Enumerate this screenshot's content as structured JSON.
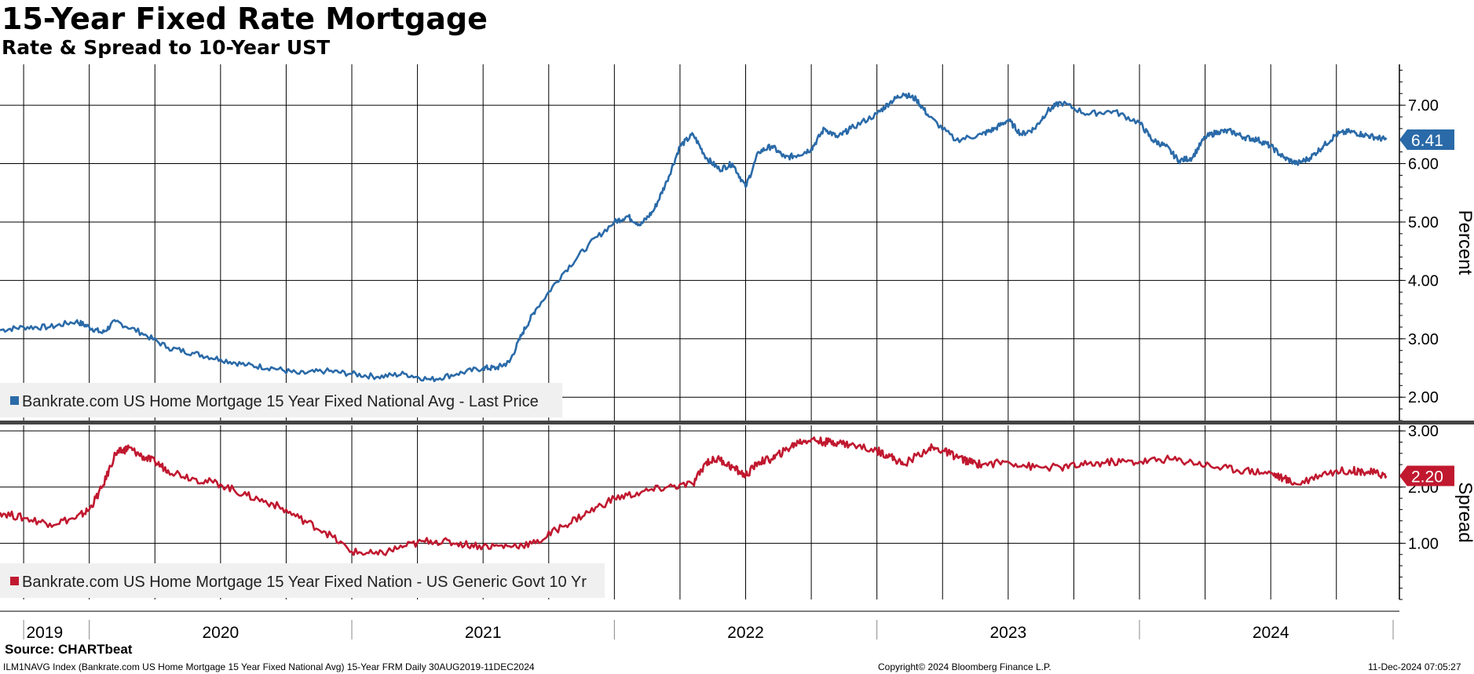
{
  "header": {
    "title": "15-Year Fixed Rate Mortgage",
    "subtitle": "Rate & Spread to 10-Year UST"
  },
  "footer": {
    "source": "Source: CHARTbeat",
    "index_desc": "ILM1NAVG Index (Bankrate.com US Home Mortgage 15 Year Fixed National Avg) 15-Year FRM  Daily 30AUG2019-11DEC2024",
    "copyright": "Copyright© 2024 Bloomberg Finance L.P.",
    "timestamp": "11-Dec-2024 07:05:27"
  },
  "colors": {
    "rate": "#2a6aa8",
    "spread": "#c0182f",
    "grid": "#000000",
    "legend_bg": "#f0f0f0"
  },
  "chart_data": [
    {
      "type": "line",
      "panel": "top",
      "ylabel": "Percent",
      "ylim": [
        1.6,
        7.7
      ],
      "yticks": [
        "2.00",
        "3.00",
        "4.00",
        "5.00",
        "6.00",
        "7.00"
      ],
      "legend": "Bankrate.com US Home Mortgage 15 Year Fixed National Avg - Last Price",
      "last_value": "6.41",
      "series": [
        {
          "name": "Bankrate.com US Home Mortgage 15 Year Fixed National Avg - Last Price",
          "x": [
            2019.66,
            2019.75,
            2019.85,
            2019.95,
            2020.0,
            2020.05,
            2020.1,
            2020.2,
            2020.3,
            2020.4,
            2020.5,
            2020.6,
            2020.7,
            2020.8,
            2020.9,
            2021.0,
            2021.1,
            2021.2,
            2021.3,
            2021.4,
            2021.5,
            2021.55,
            2021.6,
            2021.65,
            2021.7,
            2021.8,
            2021.9,
            2022.0,
            2022.05,
            2022.1,
            2022.15,
            2022.2,
            2022.25,
            2022.3,
            2022.35,
            2022.4,
            2022.45,
            2022.5,
            2022.55,
            2022.6,
            2022.65,
            2022.7,
            2022.75,
            2022.8,
            2022.85,
            2022.9,
            2023.0,
            2023.05,
            2023.1,
            2023.15,
            2023.2,
            2023.3,
            2023.4,
            2023.45,
            2023.5,
            2023.55,
            2023.6,
            2023.65,
            2023.7,
            2023.8,
            2023.9,
            2024.0,
            2024.05,
            2024.1,
            2024.15,
            2024.2,
            2024.25,
            2024.3,
            2024.35,
            2024.4,
            2024.45,
            2024.5,
            2024.55,
            2024.6,
            2024.65,
            2024.7,
            2024.75,
            2024.8,
            2024.85,
            2024.9,
            2024.94
          ],
          "values": [
            3.15,
            3.2,
            3.2,
            3.3,
            3.2,
            3.1,
            3.3,
            3.1,
            2.85,
            2.75,
            2.65,
            2.55,
            2.5,
            2.4,
            2.45,
            2.4,
            2.35,
            2.4,
            2.3,
            2.4,
            2.5,
            2.5,
            2.6,
            3.1,
            3.5,
            4.1,
            4.6,
            5.0,
            5.1,
            4.95,
            5.2,
            5.7,
            6.3,
            6.5,
            6.1,
            5.9,
            6.0,
            5.6,
            6.2,
            6.3,
            6.1,
            6.15,
            6.25,
            6.6,
            6.45,
            6.6,
            6.85,
            7.05,
            7.2,
            7.1,
            6.8,
            6.4,
            6.5,
            6.6,
            6.75,
            6.5,
            6.6,
            6.9,
            7.05,
            6.85,
            6.9,
            6.7,
            6.4,
            6.3,
            6.05,
            6.1,
            6.45,
            6.55,
            6.55,
            6.45,
            6.41,
            6.3,
            6.1,
            6.0,
            6.1,
            6.3,
            6.5,
            6.55,
            6.5,
            6.45,
            6.41
          ]
        }
      ]
    },
    {
      "type": "line",
      "panel": "bottom",
      "ylabel": "Spread",
      "ylim": [
        0.0,
        3.1
      ],
      "yticks": [
        "1.00",
        "2.00",
        "3.00"
      ],
      "legend": "Bankrate.com US Home Mortgage 15 Year Fixed Nation - US Generic Govt 10 Yr",
      "last_value": "2.20",
      "series": [
        {
          "name": "Bankrate.com US Home Mortgage 15 Year Fixed Nation - US Generic Govt 10 Yr",
          "x": [
            2019.66,
            2019.75,
            2019.85,
            2019.95,
            2020.0,
            2020.05,
            2020.1,
            2020.13,
            2020.15,
            2020.2,
            2020.25,
            2020.3,
            2020.4,
            2020.5,
            2020.6,
            2020.7,
            2020.8,
            2020.9,
            2021.0,
            2021.1,
            2021.2,
            2021.3,
            2021.4,
            2021.5,
            2021.6,
            2021.7,
            2021.8,
            2021.9,
            2022.0,
            2022.1,
            2022.2,
            2022.3,
            2022.35,
            2022.4,
            2022.45,
            2022.5,
            2022.55,
            2022.6,
            2022.65,
            2022.7,
            2022.75,
            2022.8,
            2022.85,
            2022.9,
            2023.0,
            2023.05,
            2023.1,
            2023.2,
            2023.25,
            2023.3,
            2023.35,
            2023.4,
            2023.5,
            2023.6,
            2023.7,
            2023.8,
            2023.9,
            2024.0,
            2024.1,
            2024.2,
            2024.3,
            2024.4,
            2024.5,
            2024.55,
            2024.6,
            2024.7,
            2024.8,
            2024.85,
            2024.9,
            2024.94
          ],
          "values": [
            1.55,
            1.45,
            1.35,
            1.45,
            1.6,
            2.0,
            2.6,
            2.65,
            2.7,
            2.55,
            2.45,
            2.3,
            2.15,
            2.05,
            1.85,
            1.7,
            1.45,
            1.2,
            0.85,
            0.8,
            0.95,
            1.05,
            1.0,
            0.95,
            0.95,
            1.0,
            1.3,
            1.55,
            1.8,
            1.9,
            2.0,
            2.05,
            2.45,
            2.5,
            2.35,
            2.2,
            2.45,
            2.5,
            2.65,
            2.8,
            2.85,
            2.8,
            2.8,
            2.75,
            2.65,
            2.55,
            2.4,
            2.7,
            2.65,
            2.55,
            2.45,
            2.4,
            2.45,
            2.35,
            2.35,
            2.4,
            2.45,
            2.45,
            2.5,
            2.45,
            2.35,
            2.3,
            2.25,
            2.15,
            2.05,
            2.25,
            2.3,
            2.28,
            2.25,
            2.2
          ]
        }
      ]
    }
  ],
  "x_axis": {
    "xlim": [
      2019.66,
      2024.99
    ],
    "year_labels": [
      {
        "label": "2019",
        "x": 2019.83
      },
      {
        "label": "2020",
        "x": 2020.5
      },
      {
        "label": "2021",
        "x": 2021.5
      },
      {
        "label": "2022",
        "x": 2022.5
      },
      {
        "label": "2023",
        "x": 2023.5
      },
      {
        "label": "2024",
        "x": 2024.5
      }
    ],
    "gridlines": [
      2019.75,
      2020.0,
      2020.25,
      2020.5,
      2020.75,
      2021.0,
      2021.25,
      2021.5,
      2021.75,
      2022.0,
      2022.25,
      2022.5,
      2022.75,
      2023.0,
      2023.25,
      2023.5,
      2023.75,
      2024.0,
      2024.25,
      2024.5,
      2024.75
    ],
    "year_separators": [
      2020.0,
      2021.0,
      2022.0,
      2023.0,
      2024.0
    ]
  }
}
